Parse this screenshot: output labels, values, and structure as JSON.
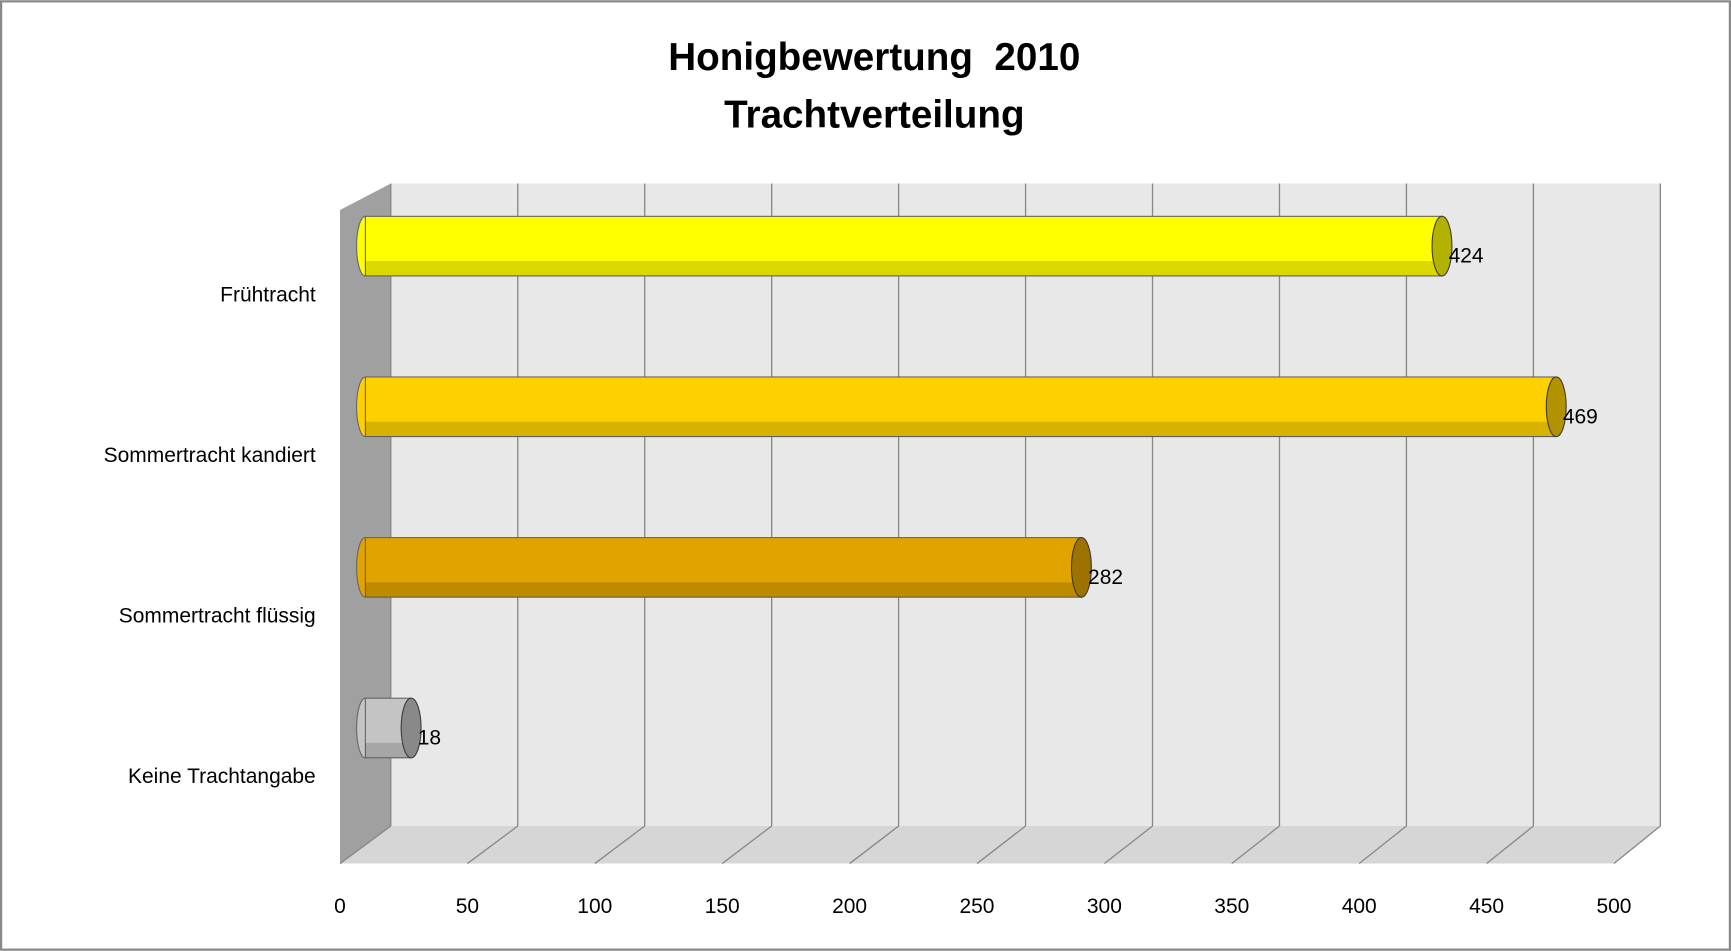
{
  "chart_data": {
    "type": "bar",
    "orientation": "horizontal",
    "title": "Honigbewertung  2010",
    "subtitle": "Trachtverteilung",
    "categories": [
      "Frühtracht",
      "Sommertracht kandiert",
      "Sommertracht flüssig",
      "Keine Trachtangabe"
    ],
    "values": [
      424,
      469,
      282,
      18
    ],
    "colors": [
      "#ffff00",
      "#ffd000",
      "#e0a300",
      "#c4c4c4"
    ],
    "xlim": [
      0,
      500
    ],
    "xticks": [
      0,
      50,
      100,
      150,
      200,
      250,
      300,
      350,
      400,
      450,
      500
    ],
    "grid": true
  }
}
